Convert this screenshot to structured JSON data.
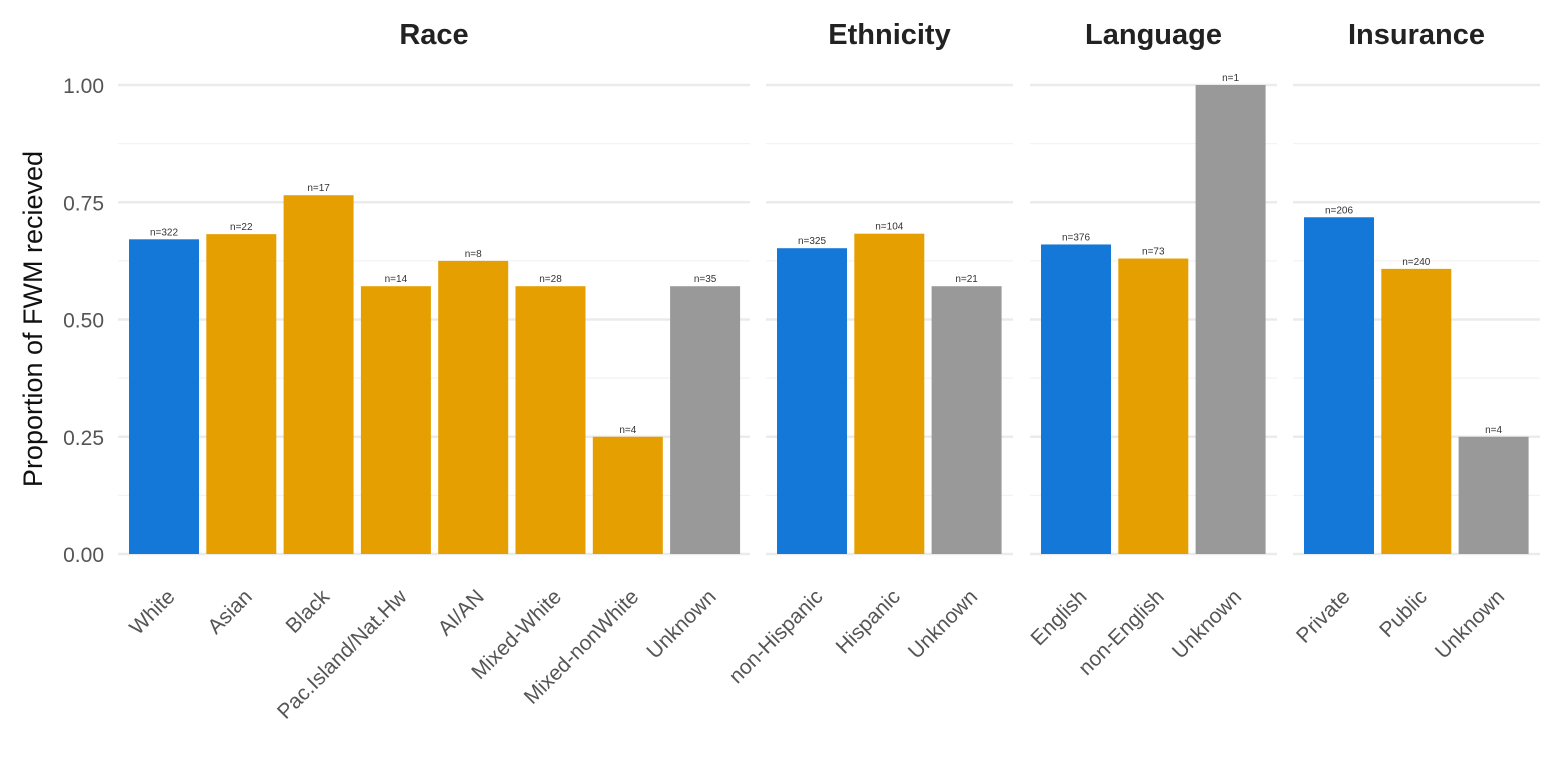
{
  "chart_data": {
    "type": "bar",
    "ylabel": "Proportion of FWM recieved",
    "ylim": [
      0,
      1
    ],
    "yticks": [
      "0.00",
      "0.25",
      "0.50",
      "0.75",
      "1.00"
    ],
    "grid": true,
    "colors": {
      "reference": "#1378d8",
      "comparison": "#e69f00",
      "unknown": "#999999"
    },
    "panels": [
      {
        "title": "Race",
        "categories": [
          "White",
          "Asian",
          "Black",
          "Pac.Island/Nat.Hw",
          "AI/AN",
          "Mixed-White",
          "Mixed-nonWhite",
          "Unknown"
        ],
        "values": [
          0.671,
          0.682,
          0.765,
          0.571,
          0.625,
          0.571,
          0.25,
          0.571
        ],
        "labels": [
          "n=322",
          "n=22",
          "n=17",
          "n=14",
          "n=8",
          "n=28",
          "n=4",
          "n=35"
        ],
        "groups": [
          "reference",
          "comparison",
          "comparison",
          "comparison",
          "comparison",
          "comparison",
          "comparison",
          "unknown"
        ]
      },
      {
        "title": "Ethnicity",
        "categories": [
          "non-Hispanic",
          "Hispanic",
          "Unknown"
        ],
        "values": [
          0.652,
          0.683,
          0.571
        ],
        "labels": [
          "n=325",
          "n=104",
          "n=21"
        ],
        "groups": [
          "reference",
          "comparison",
          "unknown"
        ]
      },
      {
        "title": "Language",
        "categories": [
          "English",
          "non-English",
          "Unknown"
        ],
        "values": [
          0.66,
          0.63,
          1.0
        ],
        "labels": [
          "n=376",
          "n=73",
          "n=1"
        ],
        "groups": [
          "reference",
          "comparison",
          "unknown"
        ]
      },
      {
        "title": "Insurance",
        "categories": [
          "Private",
          "Public",
          "Unknown"
        ],
        "values": [
          0.718,
          0.608,
          0.25
        ],
        "labels": [
          "n=206",
          "n=240",
          "n=4"
        ],
        "groups": [
          "reference",
          "comparison",
          "unknown"
        ]
      }
    ]
  }
}
